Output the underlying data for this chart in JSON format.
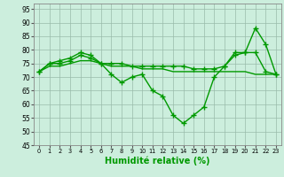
{
  "title": "",
  "xlabel": "Humidité relative (%)",
  "ylabel": "",
  "x": [
    0,
    1,
    2,
    3,
    4,
    5,
    6,
    7,
    8,
    9,
    10,
    11,
    12,
    13,
    14,
    15,
    16,
    17,
    18,
    19,
    20,
    21,
    22,
    23
  ],
  "line1": [
    72,
    75,
    76,
    77,
    79,
    78,
    75,
    71,
    68,
    70,
    71,
    65,
    63,
    56,
    53,
    56,
    59,
    70,
    74,
    79,
    79,
    88,
    82,
    71
  ],
  "line2": [
    72,
    75,
    75,
    76,
    78,
    77,
    75,
    75,
    75,
    74,
    74,
    74,
    74,
    74,
    74,
    73,
    73,
    73,
    74,
    78,
    79,
    79,
    72,
    71
  ],
  "line3": [
    72,
    74,
    74,
    75,
    76,
    76,
    75,
    74,
    74,
    74,
    73,
    73,
    73,
    72,
    72,
    72,
    72,
    72,
    72,
    72,
    72,
    71,
    71,
    71
  ],
  "line_color": "#009900",
  "bg_color": "#cceedd",
  "grid_color": "#99bbaa",
  "ylim": [
    45,
    97
  ],
  "yticks": [
    45,
    50,
    55,
    60,
    65,
    70,
    75,
    80,
    85,
    90,
    95
  ],
  "xticks": [
    0,
    1,
    2,
    3,
    4,
    5,
    6,
    7,
    8,
    9,
    10,
    11,
    12,
    13,
    14,
    15,
    16,
    17,
    18,
    19,
    20,
    21,
    22,
    23
  ]
}
